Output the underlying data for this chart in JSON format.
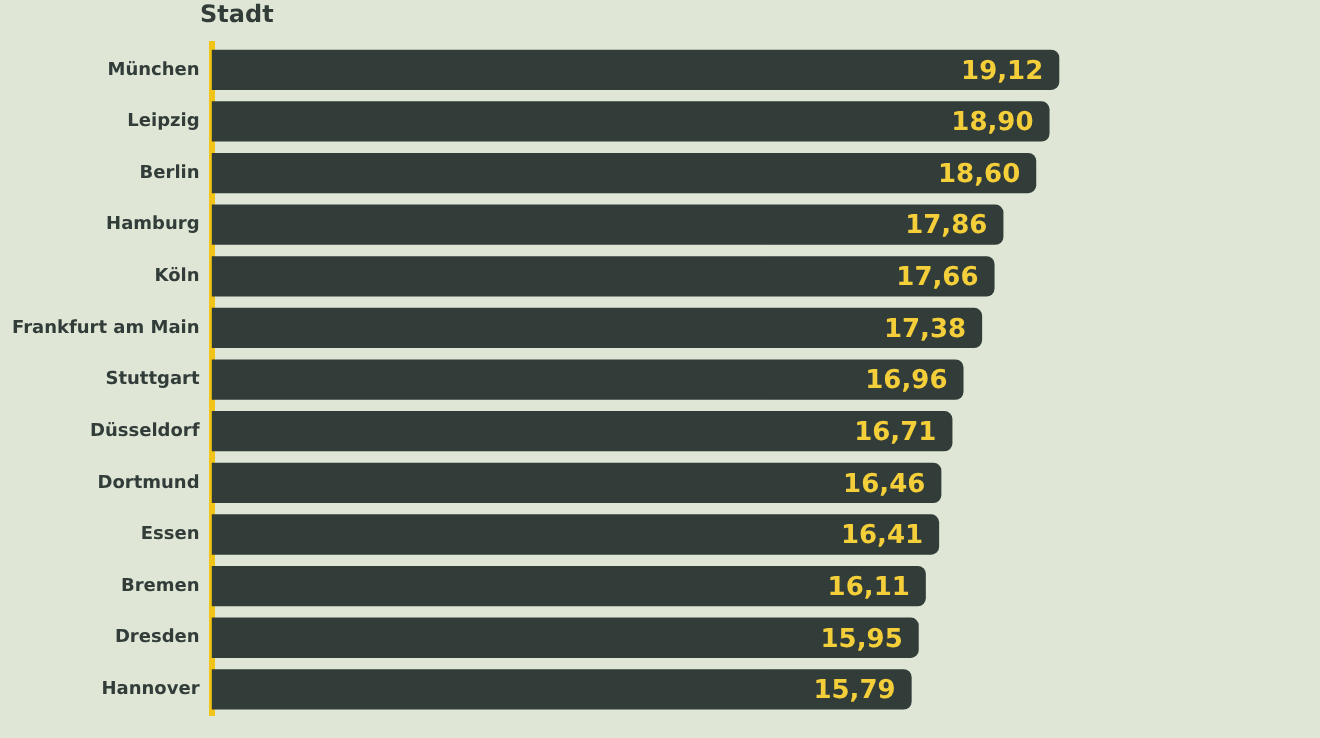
{
  "chart_data": {
    "type": "bar",
    "orientation": "horizontal",
    "ylabel": "Stadt",
    "categories": [
      "München",
      "Leipzig",
      "Berlin",
      "Hamburg",
      "Köln",
      "Frankfurt am Main",
      "Stuttgart",
      "Düsseldorf",
      "Dortmund",
      "Essen",
      "Bremen",
      "Dresden",
      "Hannover"
    ],
    "values": [
      19.12,
      18.9,
      18.6,
      17.86,
      17.66,
      17.38,
      16.96,
      16.71,
      16.46,
      16.41,
      16.11,
      15.95,
      15.79
    ],
    "value_labels": [
      "19,12",
      "18,90",
      "18,60",
      "17,86",
      "17,66",
      "17,38",
      "16,96",
      "16,71",
      "16,46",
      "16,41",
      "16,11",
      "15,95",
      "15,79"
    ],
    "color": "#323d39",
    "tick_labels": "y"
  }
}
